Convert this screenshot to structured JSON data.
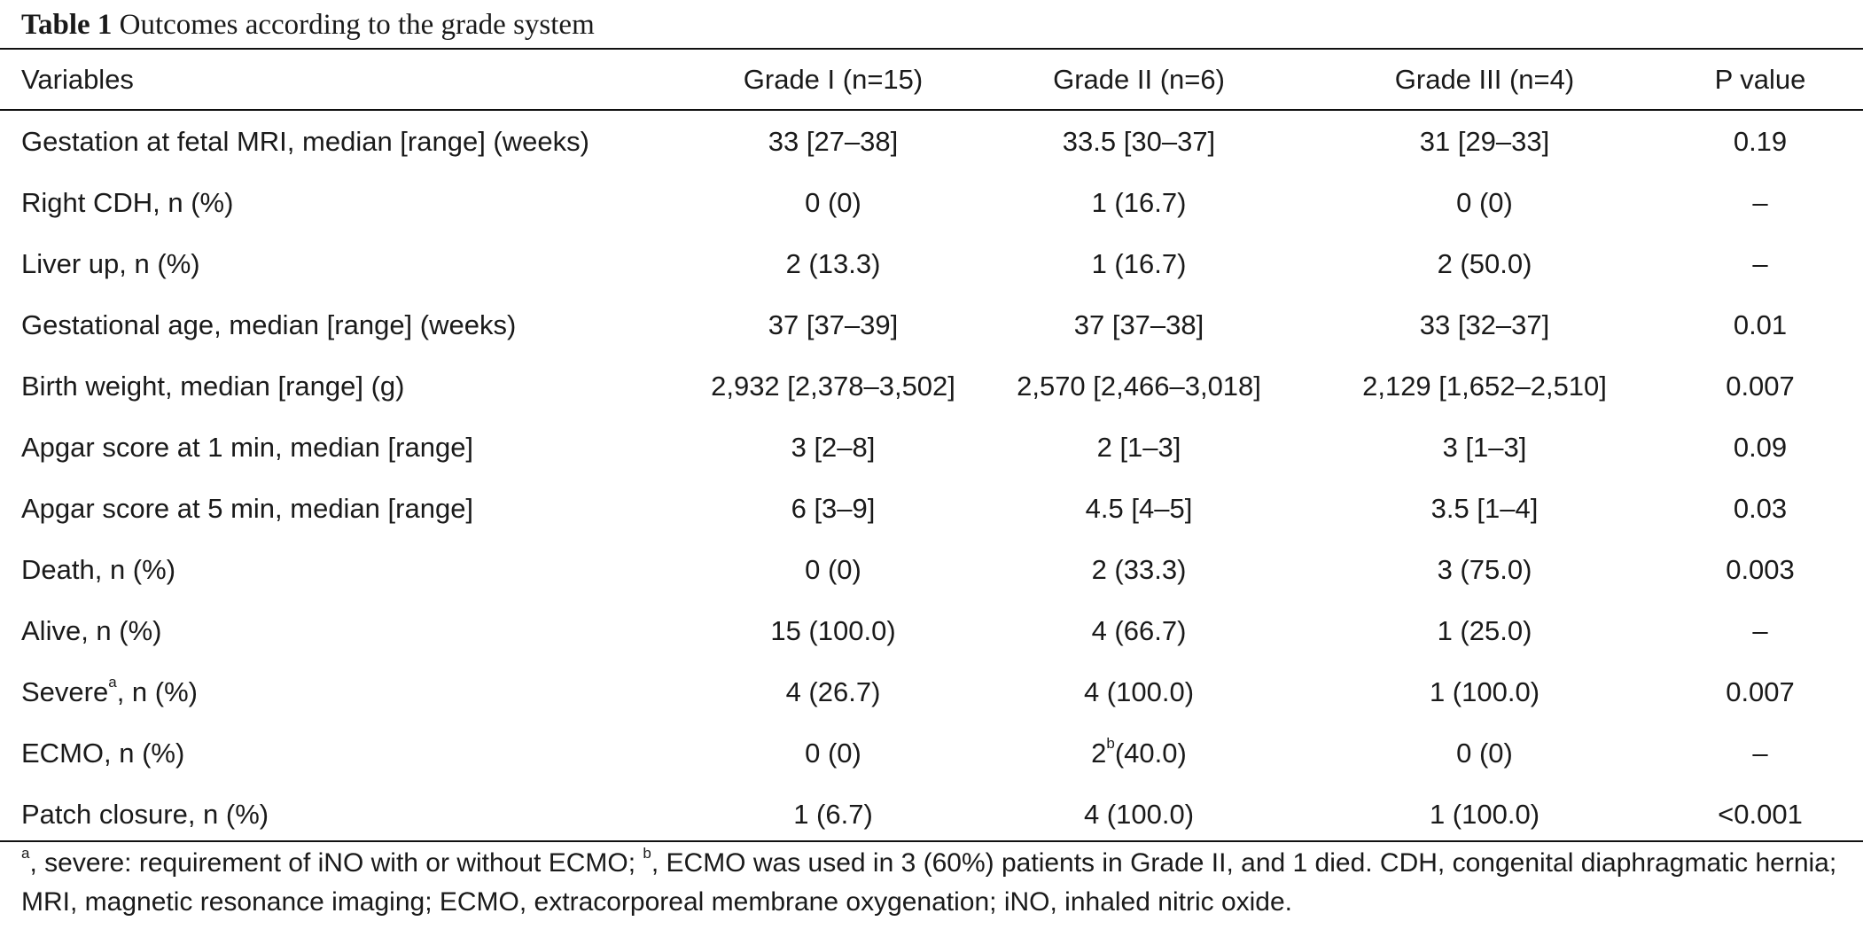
{
  "caption": {
    "label": "Table 1",
    "title": "Outcomes according to the grade system"
  },
  "table": {
    "headers": [
      "Variables",
      "Grade I (n=15)",
      "Grade II (n=6)",
      "Grade III (n=4)",
      "P value"
    ],
    "rows": [
      {
        "variable": "Gestation at fetal MRI, median [range] (weeks)",
        "cells": [
          "33 [27–38]",
          "33.5 [30–37]",
          "31 [29–33]",
          "0.19"
        ]
      },
      {
        "variable": "Right CDH, n (%)",
        "cells": [
          "0 (0)",
          "1 (16.7)",
          "0 (0)",
          "–"
        ]
      },
      {
        "variable": "Liver up, n (%)",
        "cells": [
          "2 (13.3)",
          "1 (16.7)",
          "2 (50.0)",
          "–"
        ]
      },
      {
        "variable": "Gestational age, median [range] (weeks)",
        "cells": [
          "37 [37–39]",
          "37 [37–38]",
          "33 [32–37]",
          "0.01"
        ]
      },
      {
        "variable": "Birth weight, median [range] (g)",
        "cells": [
          "2,932 [2,378–3,502]",
          "2,570 [2,466–3,018]",
          "2,129 [1,652–2,510]",
          "0.007"
        ]
      },
      {
        "variable": "Apgar score at 1 min, median [range]",
        "cells": [
          "3 [2–8]",
          "2 [1–3]",
          "3 [1–3]",
          "0.09"
        ]
      },
      {
        "variable": "Apgar score at 5 min, median [range]",
        "cells": [
          "6 [3–9]",
          "4.5 [4–5]",
          "3.5 [1–4]",
          "0.03"
        ]
      },
      {
        "variable": "Death, n (%)",
        "cells": [
          "0 (0)",
          "2 (33.3)",
          "3 (75.0)",
          "0.003"
        ]
      },
      {
        "variable": "Alive, n (%)",
        "cells": [
          "15 (100.0)",
          "4 (66.7)",
          "1 (25.0)",
          "–"
        ]
      },
      {
        "variable": "Severe",
        "variable_sup": "a",
        "variable_suffix": ", n (%)",
        "cells": [
          "4 (26.7)",
          "4 (100.0)",
          "1 (100.0)",
          "0.007"
        ]
      },
      {
        "variable": "ECMO, n (%)",
        "cells": [
          "0 (0)",
          "2",
          "0 (0)",
          "–"
        ],
        "grade2_sup": "b",
        "grade2_suffix": "(40.0)"
      },
      {
        "variable": "Patch closure, n (%)",
        "cells": [
          "1 (6.7)",
          "4 (100.0)",
          "1 (100.0)",
          "<0.001"
        ]
      }
    ]
  },
  "footnote": {
    "sup_a": "a",
    "part1": ", severe: requirement of iNO with or without ECMO; ",
    "sup_b": "b",
    "part2": ", ECMO was used in 3 (60%) patients in Grade II, and 1 died. CDH, congenital diaphragmatic hernia; MRI, magnetic resonance imaging; ECMO, extracorporeal membrane oxygenation; iNO, inhaled nitric oxide."
  }
}
